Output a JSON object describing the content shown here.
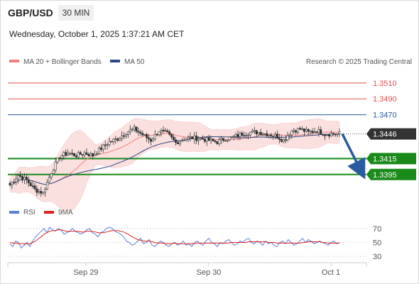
{
  "header": {
    "symbol": "GBP/USD",
    "timeframe": "30 MIN",
    "datetime": "Wednesday, October 1, 2025 1:37:21 AM CET"
  },
  "legend": {
    "ma20_label": "MA 20 + Bollinger Bands",
    "ma50_label": "MA 50",
    "source": "Research © 2025 Trading Central",
    "rsi_label": "RSI",
    "rsi_ma_label": "9MA"
  },
  "colors": {
    "resistance": "#e05050",
    "pivot": "#2a5aa0",
    "support": "#1a8a1a",
    "current": "#333333",
    "ma20": "#f08080",
    "ma50": "#2a4a8a",
    "bands": "#fbe0e0",
    "bull_candle": "#ffffff",
    "bear_candle": "#333333",
    "rsi": "#5b7fd8",
    "rsi_ma": "#dd2222",
    "arrow": "#2a5aa0"
  },
  "chart_data": [
    {
      "type": "candlestick",
      "title": "GBP/USD",
      "timeframe": "30 MIN",
      "x_ticks": [
        "Sep 29",
        "Sep 30",
        "Oct 1"
      ],
      "ylim": [
        1.336,
        1.3525
      ],
      "current_price": "1.3446",
      "levels": [
        {
          "value": 1.351,
          "label": "1.3510",
          "kind": "resistance"
        },
        {
          "value": 1.349,
          "label": "1.3490",
          "kind": "resistance"
        },
        {
          "value": 1.347,
          "label": "1.3470",
          "kind": "pivot"
        },
        {
          "value": 1.3415,
          "label": "1.3415",
          "kind": "support"
        },
        {
          "value": 1.3395,
          "label": "1.3395",
          "kind": "support"
        }
      ],
      "series": [
        {
          "name": "MA 20 + Bollinger Bands",
          "style": "ma20"
        },
        {
          "name": "MA 50",
          "style": "ma50"
        }
      ],
      "price_path": [
        [
          0,
          1.3382
        ],
        [
          4,
          1.3394
        ],
        [
          8,
          1.3388
        ],
        [
          12,
          1.3376
        ],
        [
          16,
          1.3372
        ],
        [
          20,
          1.3398
        ],
        [
          24,
          1.3418
        ],
        [
          28,
          1.3422
        ],
        [
          32,
          1.3419
        ],
        [
          36,
          1.3422
        ],
        [
          40,
          1.3419
        ],
        [
          44,
          1.3428
        ],
        [
          48,
          1.3436
        ],
        [
          52,
          1.344
        ],
        [
          56,
          1.3448
        ],
        [
          60,
          1.3452
        ],
        [
          64,
          1.3445
        ],
        [
          68,
          1.3438
        ],
        [
          72,
          1.345
        ],
        [
          76,
          1.3446
        ],
        [
          80,
          1.3435
        ],
        [
          84,
          1.344
        ],
        [
          88,
          1.3441
        ],
        [
          92,
          1.344
        ],
        [
          96,
          1.3438
        ],
        [
          100,
          1.3436
        ],
        [
          104,
          1.344
        ],
        [
          108,
          1.3442
        ],
        [
          112,
          1.3446
        ],
        [
          116,
          1.3448
        ],
        [
          120,
          1.3448
        ],
        [
          124,
          1.3446
        ],
        [
          128,
          1.3444
        ],
        [
          132,
          1.3438
        ],
        [
          136,
          1.345
        ],
        [
          140,
          1.3452
        ],
        [
          144,
          1.3448
        ],
        [
          148,
          1.345
        ],
        [
          152,
          1.3446
        ],
        [
          156,
          1.3446
        ]
      ],
      "forecast": {
        "from": 1.3446,
        "to": 1.34,
        "direction": "down"
      }
    },
    {
      "type": "line",
      "title": "RSI",
      "y_ticks": [
        70,
        50,
        30
      ],
      "ylim": [
        25,
        80
      ],
      "series": [
        {
          "name": "RSI",
          "style": "rsi",
          "values": [
            48,
            44,
            52,
            50,
            42,
            46,
            50,
            44,
            52,
            58,
            62,
            66,
            70,
            64,
            72,
            68,
            66,
            70,
            68,
            62,
            64,
            66,
            70,
            66,
            64,
            62,
            64,
            68,
            70,
            64,
            62,
            58,
            64,
            66,
            70,
            72,
            70,
            66,
            64,
            62,
            58,
            52,
            50,
            46,
            48,
            52,
            56,
            48,
            50,
            54,
            46,
            44,
            48,
            52,
            50,
            46,
            44,
            48,
            50,
            46,
            48,
            52,
            46,
            48,
            44,
            50,
            52,
            48,
            46,
            52,
            56,
            50,
            48,
            44,
            50,
            48,
            52,
            54,
            50,
            46,
            48,
            52,
            50,
            54,
            56,
            50,
            48,
            52,
            50,
            46,
            52,
            48,
            50,
            46,
            44,
            50,
            52,
            48,
            54,
            50,
            46,
            48,
            52,
            56,
            50,
            54,
            52,
            48,
            50,
            52,
            50,
            48,
            46,
            50,
            52,
            48,
            50
          ]
        },
        {
          "name": "9MA",
          "style": "rsi_ma",
          "values": [
            50,
            49,
            49,
            48,
            48,
            48,
            48,
            48,
            50,
            52,
            55,
            58,
            62,
            64,
            66,
            67,
            67,
            68,
            68,
            67,
            66,
            66,
            66,
            66,
            66,
            65,
            65,
            66,
            66,
            66,
            65,
            64,
            64,
            64,
            65,
            66,
            67,
            67,
            67,
            66,
            65,
            63,
            61,
            58,
            56,
            54,
            53,
            52,
            52,
            52,
            51,
            50,
            49,
            49,
            49,
            48,
            48,
            48,
            49,
            48,
            48,
            48,
            48,
            48,
            48,
            48,
            49,
            49,
            49,
            49,
            49,
            49,
            49,
            49,
            49,
            49,
            49,
            49,
            50,
            50,
            50,
            50,
            50,
            50,
            51,
            51,
            51,
            51,
            51,
            51,
            51,
            50,
            50,
            50,
            49,
            49,
            49,
            49,
            49,
            49,
            49,
            49,
            49,
            50,
            50,
            51,
            51,
            51,
            51,
            51,
            50,
            50,
            49,
            49,
            49,
            49,
            49
          ]
        }
      ]
    }
  ]
}
